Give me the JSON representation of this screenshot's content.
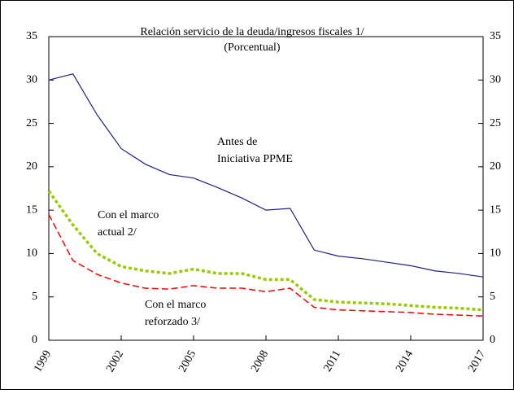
{
  "chart_data": {
    "type": "line",
    "title": "Relación servicio de la deuda/ingresos fiscales  1/",
    "subtitle": "(Porcentual)",
    "x": [
      1999,
      2000,
      2001,
      2002,
      2003,
      2004,
      2005,
      2006,
      2007,
      2008,
      2009,
      2010,
      2011,
      2012,
      2013,
      2014,
      2015,
      2016,
      2017
    ],
    "xlim": [
      1999,
      2017
    ],
    "xticks": [
      1999,
      2002,
      2005,
      2008,
      2011,
      2014,
      2017
    ],
    "ylim": [
      0,
      35
    ],
    "yticks": [
      0,
      5,
      10,
      15,
      20,
      25,
      30,
      35
    ],
    "y2lim": [
      0,
      35
    ],
    "y2ticks": [
      0,
      5,
      10,
      15,
      20,
      25,
      30,
      35
    ],
    "grid": false,
    "series": [
      {
        "label": [
          "Antes de",
          "Iniciativa PPME"
        ],
        "color": "#1f1f8f",
        "style": "solid",
        "values": [
          30.0,
          30.7,
          26.0,
          22.1,
          20.3,
          19.1,
          18.7,
          17.6,
          16.4,
          15.0,
          15.2,
          10.4,
          9.7,
          9.4,
          9.0,
          8.6,
          8.0,
          7.7,
          7.3
        ]
      },
      {
        "label": [
          "Con el marco",
          "actual  2/"
        ],
        "color": "#99cc00",
        "style": "dotted",
        "values": [
          17.2,
          13.3,
          10.0,
          8.5,
          8.0,
          7.7,
          8.2,
          7.7,
          7.7,
          7.0,
          7.0,
          4.7,
          4.4,
          4.3,
          4.2,
          4.0,
          3.8,
          3.7,
          3.5
        ]
      },
      {
        "label": [
          "Con el marco",
          "reforzado  3/"
        ],
        "color": "#ff0000",
        "style": "dashed",
        "values": [
          14.5,
          9.2,
          7.6,
          6.6,
          6.0,
          5.9,
          6.3,
          6.0,
          6.0,
          5.6,
          6.0,
          3.8,
          3.5,
          3.4,
          3.3,
          3.2,
          3.0,
          2.9,
          2.8
        ]
      }
    ]
  }
}
